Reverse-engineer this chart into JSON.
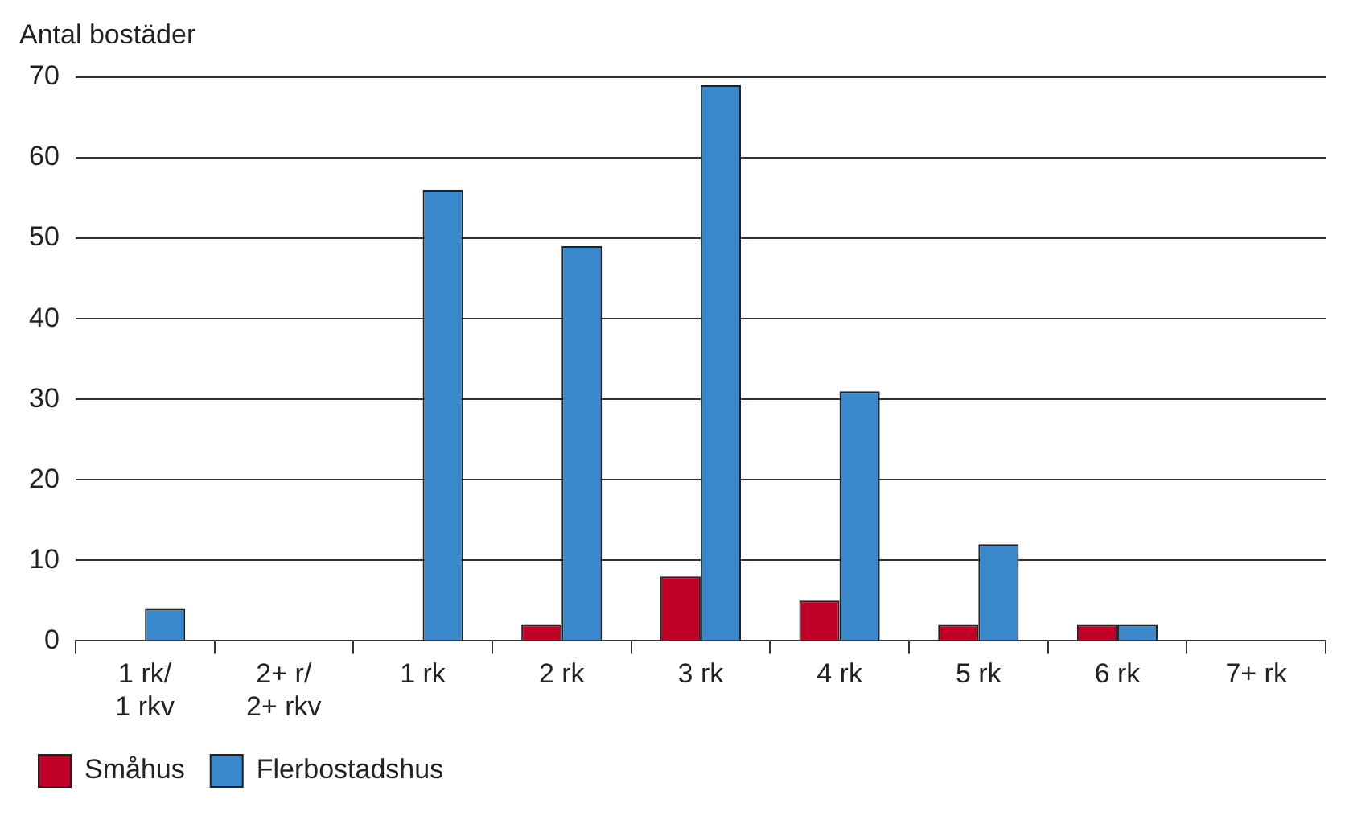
{
  "chart_data": {
    "type": "bar",
    "ylabel": "Antal bostäder",
    "categories": [
      "1 rk/\n1 rkv",
      "2+ r/\n2+ rkv",
      "1 rk",
      "2 rk",
      "3 rk",
      "4 rk",
      "5 rk",
      "6 rk",
      "7+ rk"
    ],
    "series": [
      {
        "name": "Småhus",
        "color": "#c00026",
        "values": [
          0,
          0,
          0,
          2,
          8,
          5,
          2,
          2,
          0
        ]
      },
      {
        "name": "Flerbostadshus",
        "color": "#3a88cc",
        "values": [
          4,
          0,
          56,
          49,
          69,
          31,
          12,
          2,
          0
        ]
      }
    ],
    "ylim": [
      0,
      70
    ],
    "yticks": [
      0,
      10,
      20,
      30,
      40,
      50,
      60,
      70
    ],
    "grid": "y",
    "legend": "bottom left"
  }
}
